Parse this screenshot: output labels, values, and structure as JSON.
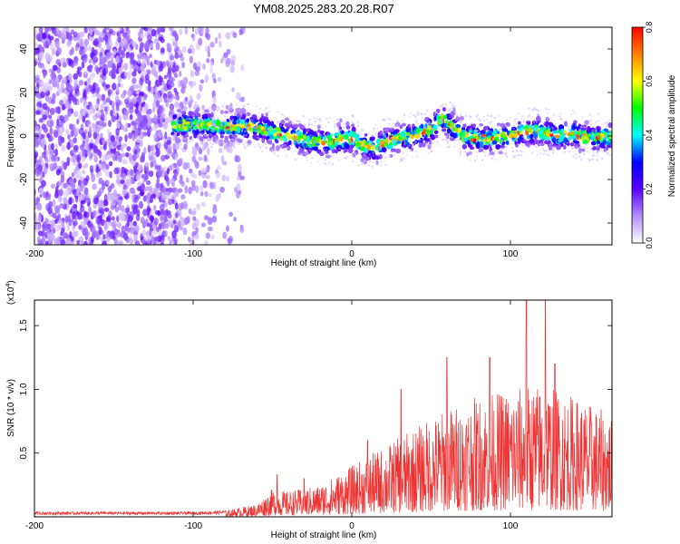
{
  "title": "YM08.2025.283.20.28.R07",
  "chart_data": [
    {
      "type": "heatmap",
      "xlabel": "Height of straight line (km)",
      "ylabel": "Frequency (Hz)",
      "xlim": [
        -200,
        164
      ],
      "ylim": [
        -50,
        50
      ],
      "xticks": [
        -200,
        -100,
        0,
        100
      ],
      "yticks": [
        -40,
        -20,
        0,
        20,
        40
      ],
      "colorbar": {
        "label": "Normalized spectral amplitude",
        "range": [
          0,
          0.8
        ],
        "ticks": [
          "0.0",
          "0.2",
          "0.4",
          "0.6",
          "0.8"
        ],
        "colormap": [
          "#ffffff",
          "#b38cff",
          "#5a00ff",
          "#0000ff",
          "#00ffff",
          "#00ff00",
          "#ffff00",
          "#ff8000",
          "#ff0000"
        ]
      },
      "scattered_noise_region_km": [
        -200,
        -68
      ],
      "signal_band_start_km": -113,
      "band_center_hz": [
        [
          -113,
          5
        ],
        [
          -90,
          5
        ],
        [
          -60,
          4
        ],
        [
          -50,
          2
        ],
        [
          -40,
          0
        ],
        [
          -30,
          -2
        ],
        [
          -20,
          -3
        ],
        [
          -10,
          -2
        ],
        [
          0,
          -1
        ],
        [
          10,
          -5
        ],
        [
          15,
          -6
        ],
        [
          20,
          -3
        ],
        [
          30,
          -1
        ],
        [
          40,
          0
        ],
        [
          50,
          3
        ],
        [
          57,
          8
        ],
        [
          65,
          3
        ],
        [
          70,
          0
        ],
        [
          80,
          -1
        ],
        [
          90,
          -1
        ],
        [
          100,
          0
        ],
        [
          110,
          2
        ],
        [
          120,
          2
        ],
        [
          130,
          0
        ],
        [
          140,
          1
        ],
        [
          150,
          -1
        ],
        [
          164,
          0
        ]
      ],
      "peak_amplitude": 0.8
    },
    {
      "type": "line",
      "xlabel": "Height of straight line (km)",
      "ylabel": "SNR (10 * v/v)",
      "y_multiplier_label": "(x10",
      "y_multiplier_exp": "4",
      "y_multiplier_close": ")",
      "xlim": [
        -200,
        164
      ],
      "ylim": [
        0,
        1.7
      ],
      "xticks": [
        -200,
        -100,
        0,
        100
      ],
      "yticks": [
        "0.5",
        "1.0",
        "1.5"
      ],
      "series_color": "#ee3333",
      "envelope": [
        [
          -200,
          0.04
        ],
        [
          -100,
          0.04
        ],
        [
          -80,
          0.05
        ],
        [
          -60,
          0.1
        ],
        [
          -50,
          0.22
        ],
        [
          -40,
          0.2
        ],
        [
          -20,
          0.25
        ],
        [
          0,
          0.4
        ],
        [
          20,
          0.55
        ],
        [
          40,
          0.7
        ],
        [
          60,
          0.85
        ],
        [
          80,
          0.95
        ],
        [
          100,
          1.0
        ],
        [
          120,
          1.05
        ],
        [
          140,
          0.95
        ],
        [
          164,
          0.8
        ]
      ],
      "spikes": [
        [
          -47,
          0.33
        ],
        [
          -30,
          0.3
        ],
        [
          10,
          0.6
        ],
        [
          31,
          1.0
        ],
        [
          60,
          1.25
        ],
        [
          110,
          1.7
        ],
        [
          122,
          1.7
        ],
        [
          87,
          1.25
        ],
        [
          128,
          1.2
        ]
      ]
    }
  ]
}
